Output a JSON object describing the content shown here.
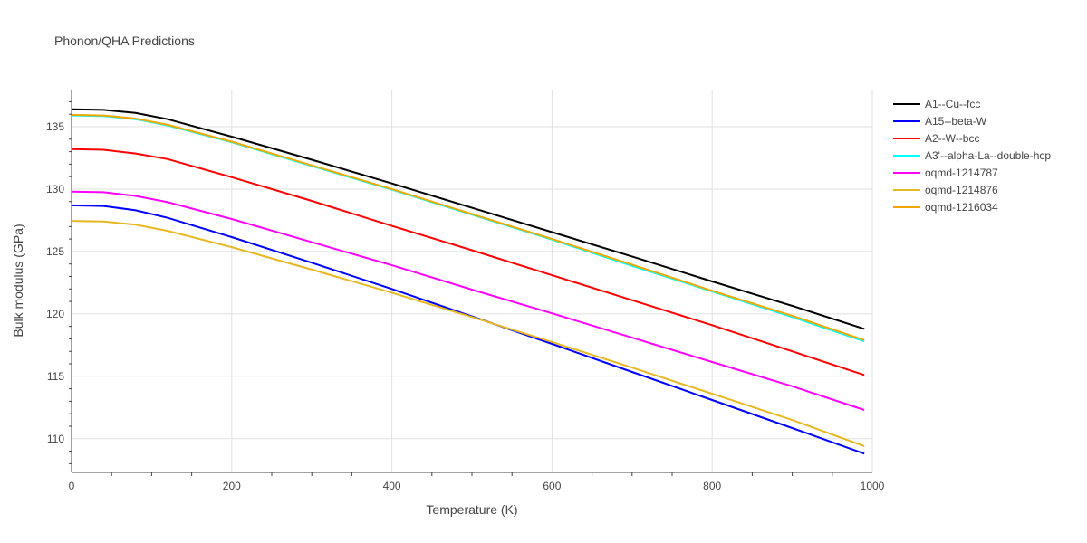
{
  "chart_data": {
    "type": "line",
    "title": "Phonon/QHA Predictions",
    "xlabel": "Temperature (K)",
    "ylabel": "Bulk modulus (GPa)",
    "xlim": [
      0,
      1000
    ],
    "ylim": [
      107.3,
      137.9
    ],
    "x_ticks": [
      0,
      200,
      400,
      600,
      800,
      1000
    ],
    "y_ticks": [
      110,
      115,
      120,
      125,
      130,
      135
    ],
    "grid": true,
    "legend_position": "top-right",
    "series": [
      {
        "name": "A1--Cu--fcc",
        "color": "#000000",
        "points": [
          [
            0,
            136.4
          ],
          [
            40,
            136.35
          ],
          [
            80,
            136.1
          ],
          [
            120,
            135.6
          ],
          [
            200,
            134.2
          ],
          [
            300,
            132.35
          ],
          [
            400,
            130.45
          ],
          [
            500,
            128.5
          ],
          [
            600,
            126.55
          ],
          [
            700,
            124.6
          ],
          [
            800,
            122.6
          ],
          [
            900,
            120.65
          ],
          [
            990,
            118.8
          ]
        ]
      },
      {
        "name": "A15--beta-W",
        "color": "#0000ff",
        "points": [
          [
            0,
            128.7
          ],
          [
            40,
            128.65
          ],
          [
            80,
            128.3
          ],
          [
            120,
            127.7
          ],
          [
            200,
            126.15
          ],
          [
            300,
            124.1
          ],
          [
            400,
            122.0
          ],
          [
            500,
            119.8
          ],
          [
            600,
            117.6
          ],
          [
            700,
            115.35
          ],
          [
            800,
            113.1
          ],
          [
            900,
            110.85
          ],
          [
            990,
            108.8
          ]
        ]
      },
      {
        "name": "A2--W--bcc",
        "color": "#ff0000",
        "points": [
          [
            0,
            133.2
          ],
          [
            40,
            133.15
          ],
          [
            80,
            132.85
          ],
          [
            120,
            132.4
          ],
          [
            200,
            130.95
          ],
          [
            300,
            129.05
          ],
          [
            400,
            127.05
          ],
          [
            500,
            125.1
          ],
          [
            600,
            123.1
          ],
          [
            700,
            121.1
          ],
          [
            800,
            119.1
          ],
          [
            900,
            117.0
          ],
          [
            990,
            115.1
          ]
        ]
      },
      {
        "name": "A3'--alpha-La--double-hcp",
        "color": "#00ffff",
        "points": [
          [
            0,
            135.9
          ],
          [
            40,
            135.85
          ],
          [
            80,
            135.6
          ],
          [
            120,
            135.1
          ],
          [
            200,
            133.75
          ],
          [
            300,
            131.85
          ],
          [
            400,
            129.95
          ],
          [
            500,
            127.95
          ],
          [
            600,
            125.95
          ],
          [
            700,
            123.85
          ],
          [
            800,
            121.8
          ],
          [
            900,
            119.75
          ],
          [
            990,
            117.8
          ]
        ]
      },
      {
        "name": "oqmd-1214787",
        "color": "#ff00ff",
        "points": [
          [
            0,
            129.8
          ],
          [
            40,
            129.75
          ],
          [
            80,
            129.45
          ],
          [
            120,
            128.95
          ],
          [
            200,
            127.6
          ],
          [
            300,
            125.75
          ],
          [
            400,
            123.9
          ],
          [
            500,
            121.95
          ],
          [
            600,
            120.05
          ],
          [
            700,
            118.1
          ],
          [
            800,
            116.15
          ],
          [
            900,
            114.2
          ],
          [
            990,
            112.3
          ]
        ]
      },
      {
        "name": "oqmd-1214876",
        "color": "#e6b822",
        "points": [
          [
            0,
            127.45
          ],
          [
            40,
            127.4
          ],
          [
            80,
            127.15
          ],
          [
            120,
            126.65
          ],
          [
            200,
            125.35
          ],
          [
            300,
            123.55
          ],
          [
            400,
            121.7
          ],
          [
            500,
            119.75
          ],
          [
            600,
            117.75
          ],
          [
            700,
            115.7
          ],
          [
            800,
            113.6
          ],
          [
            900,
            111.5
          ],
          [
            990,
            109.4
          ]
        ]
      },
      {
        "name": "oqmd-1216034",
        "color": "#f0a800",
        "points": [
          [
            0,
            135.95
          ],
          [
            40,
            135.9
          ],
          [
            80,
            135.65
          ],
          [
            120,
            135.15
          ],
          [
            200,
            133.8
          ],
          [
            300,
            131.9
          ],
          [
            400,
            130.0
          ],
          [
            500,
            128.0
          ],
          [
            600,
            126.0
          ],
          [
            700,
            123.95
          ],
          [
            800,
            121.85
          ],
          [
            900,
            119.85
          ],
          [
            990,
            117.9
          ]
        ]
      }
    ]
  }
}
